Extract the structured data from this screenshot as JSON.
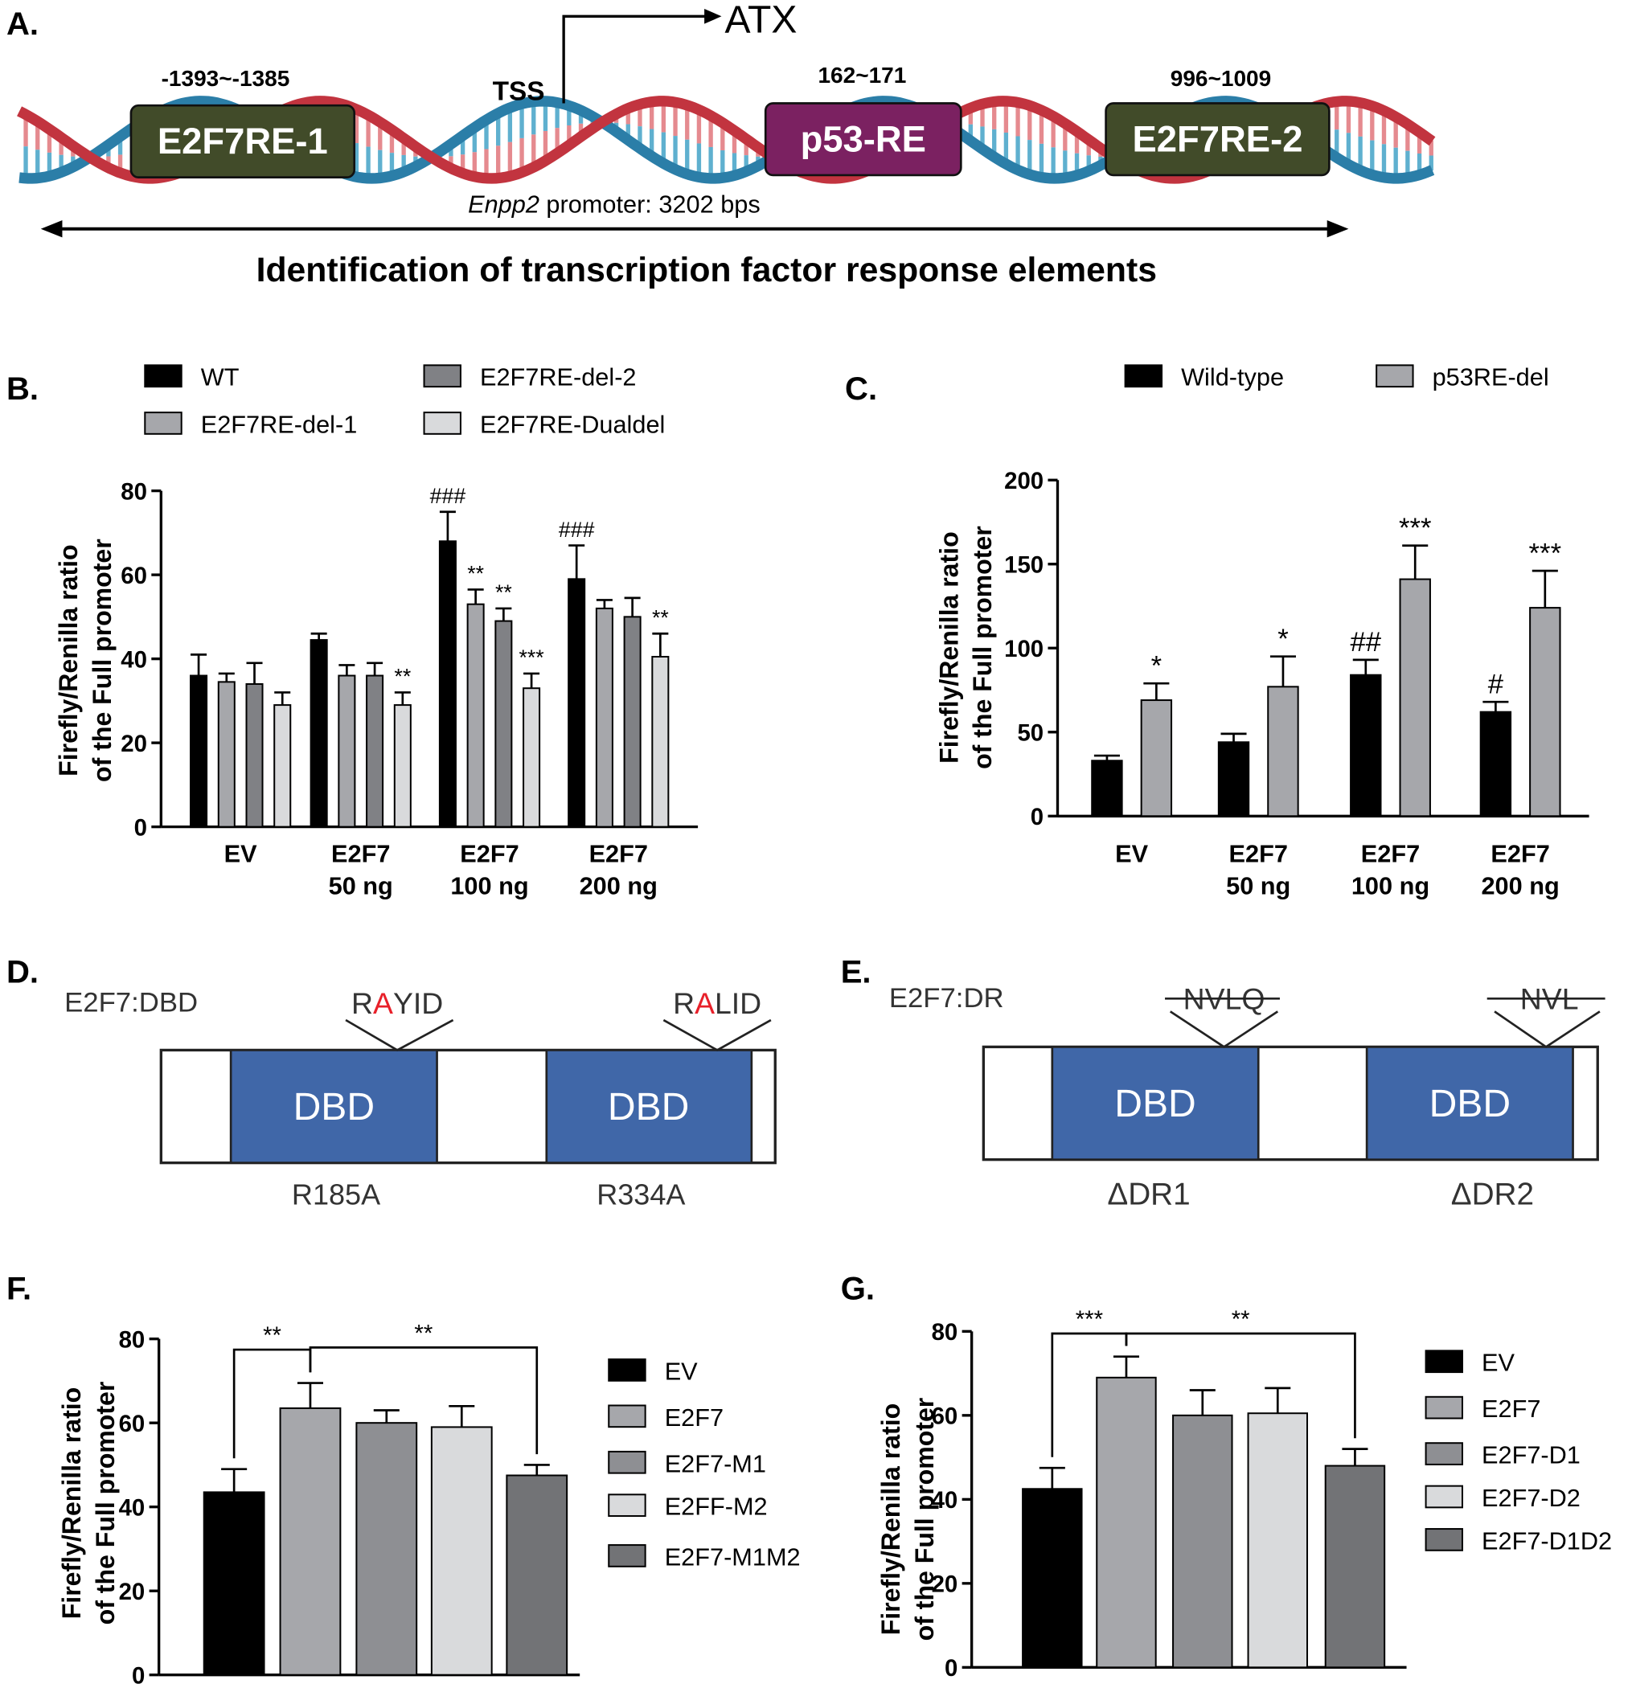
{
  "panel_a": {
    "label": "A.",
    "gene": "ATX",
    "tss": "TSS",
    "elements": [
      {
        "name": "E2F7RE-1",
        "position": "-1393~-1385"
      },
      {
        "name": "p53-RE",
        "position": "162~171"
      },
      {
        "name": "E2F7RE-2",
        "position": "996~1009"
      }
    ],
    "promoter_gene": "Enpp2",
    "promoter_length": " promoter: 3202 bps",
    "caption": "Identification of transcription factor response elements"
  },
  "panel_d": {
    "label": "D.",
    "construct": "E2F7:DBD",
    "domains": [
      "DBD",
      "DBD"
    ],
    "motifs": [
      [
        "R",
        "A",
        "YID"
      ],
      [
        "R",
        "A",
        "LID"
      ]
    ],
    "mutations": [
      "R185A",
      "R334A"
    ]
  },
  "panel_e": {
    "label": "E.",
    "construct": "E2F7:DR",
    "domains": [
      "DBD",
      "DBD"
    ],
    "deleted": [
      "NVLQ",
      "NVL"
    ],
    "deletions": [
      "ΔDR1",
      "ΔDR2"
    ]
  },
  "chart_data": [
    {
      "type": "bar",
      "label": "B.",
      "y_label": "Firefly/Renilla ratio\nof the Full promoter",
      "categories": [
        "EV",
        "E2F7\n50 ng",
        "E2F7\n100 ng",
        "E2F7\n200 ng"
      ],
      "series": [
        {
          "name": "WT",
          "color": "#000000",
          "values": [
            36,
            44.5,
            68,
            59
          ],
          "errors": [
            5,
            1.5,
            7,
            8
          ],
          "annotations": [
            null,
            null,
            "###",
            "###"
          ]
        },
        {
          "name": "E2F7RE-del-1",
          "color": "#a6a7ab",
          "values": [
            34.5,
            36,
            53,
            52
          ],
          "errors": [
            2,
            2.5,
            3.5,
            2
          ],
          "annotations": [
            null,
            null,
            "**",
            null
          ]
        },
        {
          "name": "E2F7RE-del-2",
          "color": "#808185",
          "values": [
            34,
            36,
            49,
            50
          ],
          "errors": [
            5,
            3,
            3,
            4.5
          ],
          "annotations": [
            null,
            null,
            "**",
            null
          ]
        },
        {
          "name": "E2F7RE-Dualdel",
          "color": "#d9dadc",
          "values": [
            29,
            29,
            33,
            40.5
          ],
          "errors": [
            3,
            3,
            3.5,
            5.5
          ],
          "annotations": [
            null,
            "**",
            "***",
            "**"
          ]
        }
      ],
      "ylim": [
        0,
        80
      ],
      "yticks": [
        0,
        20,
        40,
        60,
        80
      ]
    },
    {
      "type": "bar",
      "label": "C.",
      "y_label": "Firefly/Renilla ratio\nof the Full promoter",
      "categories": [
        "EV",
        "E2F7\n50 ng",
        "E2F7\n100 ng",
        "E2F7\n200 ng"
      ],
      "series": [
        {
          "name": "Wild-type",
          "color": "#000000",
          "values": [
            33,
            44,
            84,
            62
          ],
          "errors": [
            3,
            5,
            9,
            6
          ],
          "annotations": [
            null,
            null,
            "##",
            "#"
          ]
        },
        {
          "name": "p53RE-del",
          "color": "#a6a7ab",
          "values": [
            69,
            77,
            141,
            124
          ],
          "errors": [
            10,
            18,
            20,
            22
          ],
          "annotations": [
            "*",
            "*",
            "***",
            "***"
          ]
        }
      ],
      "ylim": [
        0,
        200
      ],
      "yticks": [
        0,
        50,
        100,
        150,
        200
      ]
    },
    {
      "type": "bar",
      "label": "F.",
      "y_label": "Firefly/Renilla ratio\nof the Full promoter",
      "categories": [
        "EV",
        "E2F7",
        "E2F7-M1",
        "E2FF-M2",
        "E2F7-M1M2"
      ],
      "values": [
        43.5,
        63.5,
        60,
        59,
        47.5
      ],
      "errors": [
        5.5,
        6,
        3,
        5,
        2.5
      ],
      "colors": [
        "#000000",
        "#a6a7ab",
        "#8e8f93",
        "#d9dadc",
        "#727376"
      ],
      "comparisons": [
        {
          "from": 0,
          "to": 1,
          "label": "**"
        },
        {
          "from": 1,
          "to": 4,
          "label": "**"
        }
      ],
      "ylim": [
        0,
        80
      ],
      "yticks": [
        0,
        20,
        40,
        60,
        80
      ]
    },
    {
      "type": "bar",
      "label": "G.",
      "y_label": "Firefly/Renilla ratio\nof the Full promoter",
      "categories": [
        "EV",
        "E2F7",
        "E2F7-D1",
        "E2F7-D2",
        "E2F7-D1D2"
      ],
      "values": [
        42.5,
        69,
        60,
        60.5,
        48
      ],
      "errors": [
        5,
        5,
        6,
        6,
        4
      ],
      "colors": [
        "#000000",
        "#a6a7ab",
        "#8e8f93",
        "#d9dadc",
        "#727376"
      ],
      "comparisons": [
        {
          "from": 0,
          "to": 1,
          "label": "***"
        },
        {
          "from": 1,
          "to": 4,
          "label": "**"
        }
      ],
      "ylim": [
        0,
        80
      ],
      "yticks": [
        0,
        20,
        40,
        60,
        80
      ]
    }
  ]
}
